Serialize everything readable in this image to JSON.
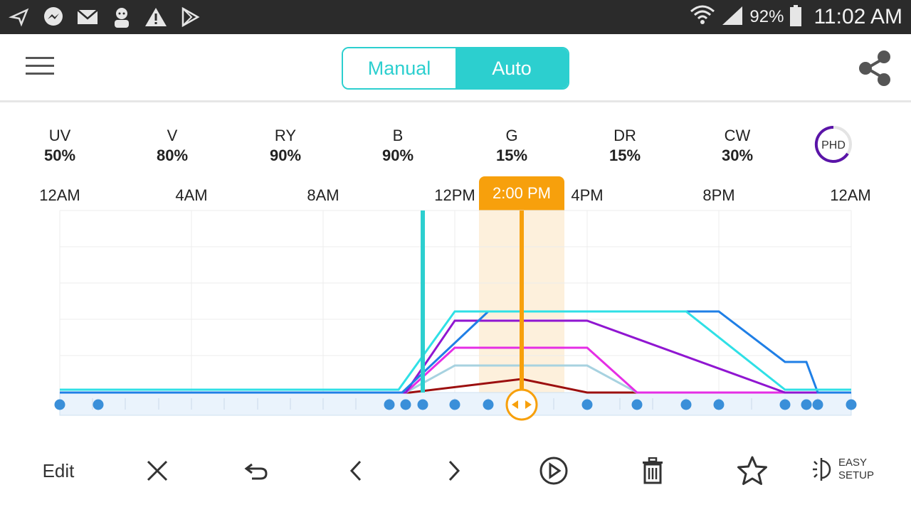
{
  "status_bar": {
    "icons": [
      "navigation-icon",
      "messenger-icon",
      "mail-icon",
      "avatar-icon",
      "warning-icon",
      "play-store-icon"
    ],
    "battery": "92%",
    "time": "11:02 AM"
  },
  "header": {
    "mode_manual": "Manual",
    "mode_auto": "Auto",
    "selected_mode": "Auto"
  },
  "channels": [
    {
      "name": "UV",
      "value": "50%"
    },
    {
      "name": "V",
      "value": "80%"
    },
    {
      "name": "RY",
      "value": "90%"
    },
    {
      "name": "B",
      "value": "90%"
    },
    {
      "name": "G",
      "value": "15%"
    },
    {
      "name": "DR",
      "value": "15%"
    },
    {
      "name": "CW",
      "value": "30%"
    }
  ],
  "preset_badge": "PHD",
  "time_axis": [
    "12AM",
    "4AM",
    "8AM",
    "12PM",
    "4PM",
    "8PM",
    "12AM"
  ],
  "current_time_label": "2:00 PM",
  "colors": {
    "accent": "#2ccfcf",
    "marker": "#f7a00c",
    "point": "#3a8fd9",
    "dark_red": "#9c0f0f",
    "magenta": "#e52ee5",
    "purple": "#9016d1",
    "blue": "#1f7fe6",
    "cyan": "#2fe0e6",
    "light_blue": "#a7d2e0"
  },
  "toolbar": {
    "edit": "Edit",
    "easy_setup_line1": "EASY",
    "easy_setup_line2": "SETUP"
  }
}
